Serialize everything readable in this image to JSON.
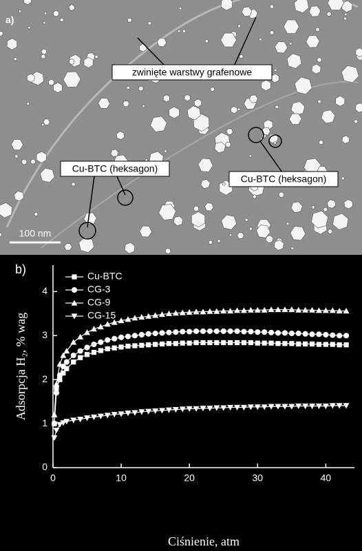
{
  "panel_a": {
    "label": "a)",
    "annotations": [
      "zwinięte warstwy grafenowe",
      "Cu-BTC (heksagon)",
      "Cu-BTC (heksagon)"
    ],
    "scale_bar": "100 nm"
  },
  "chart_data": {
    "type": "line",
    "panel_label": "b)",
    "x_label": "Ciśnienie, atm",
    "y_label": "Adsorpcja H₂, % wag",
    "background": "#000000",
    "x": [
      0.2,
      0.5,
      1,
      1.5,
      2,
      3,
      4,
      5,
      6,
      7,
      8,
      9,
      10,
      11,
      12,
      13,
      14,
      15,
      16,
      17,
      18,
      19,
      20,
      21,
      22,
      23,
      24,
      25,
      26,
      27,
      28,
      29,
      30,
      31,
      32,
      33,
      34,
      35,
      36,
      37,
      38,
      39,
      40,
      41,
      42,
      43
    ],
    "series": [
      {
        "name": "Cu-BTC",
        "color": "#ffffff",
        "marker": "square",
        "values": [
          1.0,
          1.8,
          2.0,
          2.15,
          2.25,
          2.4,
          2.5,
          2.57,
          2.62,
          2.66,
          2.7,
          2.72,
          2.74,
          2.76,
          2.77,
          2.78,
          2.79,
          2.8,
          2.81,
          2.82,
          2.82,
          2.83,
          2.83,
          2.84,
          2.84,
          2.84,
          2.84,
          2.84,
          2.84,
          2.84,
          2.84,
          2.84,
          2.83,
          2.83,
          2.83,
          2.82,
          2.82,
          2.82,
          2.81,
          2.81,
          2.81,
          2.8,
          2.8,
          2.8,
          2.79,
          2.79
        ]
      },
      {
        "name": "CG-3",
        "color": "#ffffff",
        "marker": "circle",
        "values": [
          1.0,
          1.7,
          2.1,
          2.3,
          2.4,
          2.55,
          2.65,
          2.73,
          2.8,
          2.85,
          2.9,
          2.93,
          2.96,
          2.98,
          3.0,
          3.02,
          3.04,
          3.05,
          3.06,
          3.07,
          3.08,
          3.09,
          3.09,
          3.1,
          3.1,
          3.1,
          3.1,
          3.1,
          3.1,
          3.1,
          3.09,
          3.09,
          3.08,
          3.08,
          3.07,
          3.06,
          3.06,
          3.05,
          3.05,
          3.04,
          3.03,
          3.03,
          3.02,
          3.01,
          3.0,
          3.0
        ]
      },
      {
        "name": "CG-9",
        "color": "#ffffff",
        "marker": "triangle-up",
        "values": [
          1.2,
          1.9,
          2.35,
          2.55,
          2.65,
          2.85,
          2.97,
          3.07,
          3.15,
          3.2,
          3.26,
          3.3,
          3.34,
          3.37,
          3.4,
          3.42,
          3.44,
          3.46,
          3.48,
          3.5,
          3.51,
          3.52,
          3.53,
          3.54,
          3.54,
          3.55,
          3.55,
          3.56,
          3.56,
          3.57,
          3.57,
          3.58,
          3.58,
          3.58,
          3.59,
          3.59,
          3.59,
          3.59,
          3.58,
          3.58,
          3.58,
          3.57,
          3.57,
          3.57,
          3.56,
          3.56
        ]
      },
      {
        "name": "CG-15",
        "color": "#ffffff",
        "marker": "triangle-down",
        "values": [
          0.68,
          0.85,
          0.98,
          1.02,
          1.05,
          1.08,
          1.1,
          1.13,
          1.15,
          1.17,
          1.19,
          1.21,
          1.22,
          1.24,
          1.25,
          1.27,
          1.28,
          1.29,
          1.3,
          1.31,
          1.32,
          1.33,
          1.34,
          1.34,
          1.35,
          1.35,
          1.36,
          1.36,
          1.37,
          1.37,
          1.37,
          1.38,
          1.38,
          1.38,
          1.39,
          1.39,
          1.39,
          1.39,
          1.4,
          1.4,
          1.4,
          1.4,
          1.4,
          1.41,
          1.41,
          1.41
        ]
      }
    ],
    "xlim": [
      0,
      44.2
    ],
    "xticks": [
      0,
      10,
      20,
      30,
      40
    ],
    "ylim": [
      0,
      4.6
    ],
    "yticks": [
      0,
      1,
      2,
      3,
      4
    ],
    "legend": "top-left"
  }
}
